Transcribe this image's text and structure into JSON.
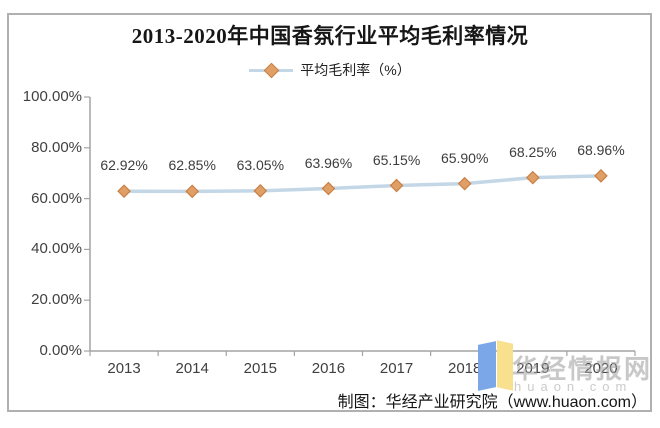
{
  "title": "2013-2020年中国香氛行业平均毛利率情况",
  "legend": {
    "label": "平均毛利率（%）"
  },
  "chart_data": {
    "type": "line",
    "title": "2013-2020年中国香氛行业平均毛利率情况",
    "categories": [
      "2013",
      "2014",
      "2015",
      "2016",
      "2017",
      "2018",
      "2019",
      "2020"
    ],
    "series": [
      {
        "name": "平均毛利率（%）",
        "values": [
          62.92,
          62.85,
          63.05,
          63.96,
          65.15,
          65.9,
          68.25,
          68.96
        ]
      }
    ],
    "data_labels": [
      "62.92%",
      "62.85%",
      "63.05%",
      "63.96%",
      "65.15%",
      "65.90%",
      "68.25%",
      "68.96%"
    ],
    "xlabel": "",
    "ylabel": "",
    "ylim": [
      0,
      100
    ],
    "y_ticks": [
      {
        "label": "100.00%",
        "value": 100
      },
      {
        "label": "80.00%",
        "value": 80
      },
      {
        "label": "60.00%",
        "value": 60
      },
      {
        "label": "40.00%",
        "value": 40
      },
      {
        "label": "20.00%",
        "value": 20
      },
      {
        "label": "0.00%",
        "value": 0
      }
    ],
    "grid": false,
    "legend_position": "top",
    "line_color": "#c3d7e6",
    "marker_fill": "#e0a065",
    "marker_stroke": "#c97f45",
    "axis_color": "#a3a3a3"
  },
  "footer": {
    "credit": "制图：华经产业研究院（www.huaon.com）"
  },
  "watermark": {
    "brand": "华经情报网",
    "domain": "huaon.com",
    "logo_blue": "#7ba6e8",
    "logo_yellow": "#f8e08e"
  }
}
